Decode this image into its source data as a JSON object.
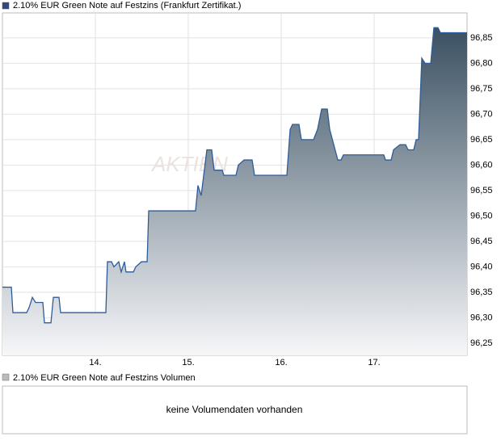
{
  "chart_data": {
    "type": "area",
    "watermark": "AKTIEN",
    "x": [
      13.0,
      13.096,
      13.113,
      13.261,
      13.287,
      13.322,
      13.357,
      13.435,
      13.452,
      13.522,
      13.548,
      13.609,
      13.626,
      14.113,
      14.13,
      14.174,
      14.2,
      14.252,
      14.278,
      14.313,
      14.33,
      14.409,
      14.435,
      14.496,
      14.557,
      14.574,
      15.078,
      15.104,
      15.139,
      15.2,
      15.252,
      15.278,
      15.365,
      15.383,
      15.513,
      15.539,
      15.6,
      15.687,
      15.713,
      16.061,
      16.096,
      16.122,
      16.191,
      16.217,
      16.348,
      16.391,
      16.435,
      16.496,
      16.522,
      16.609,
      16.643,
      16.67,
      17.104,
      17.122,
      17.183,
      17.209,
      17.278,
      17.339,
      17.365,
      17.426,
      17.452,
      17.478,
      17.513,
      17.548,
      17.609,
      17.643,
      17.687,
      17.713,
      18.0
    ],
    "series": [
      {
        "name": "2.10% EUR Green Note auf Festzins (Frankfurt Zertifikat.)",
        "color": "#2e5c99",
        "values": [
          96.36,
          96.36,
          96.31,
          96.31,
          96.32,
          96.34,
          96.33,
          96.33,
          96.29,
          96.29,
          96.34,
          96.34,
          96.31,
          96.31,
          96.41,
          96.41,
          96.4,
          96.41,
          96.39,
          96.41,
          96.39,
          96.39,
          96.4,
          96.41,
          96.41,
          96.51,
          96.51,
          96.56,
          96.54,
          96.63,
          96.63,
          96.59,
          96.59,
          96.58,
          96.58,
          96.6,
          96.61,
          96.61,
          96.58,
          96.58,
          96.67,
          96.68,
          96.68,
          96.65,
          96.65,
          96.67,
          96.71,
          96.71,
          96.67,
          96.61,
          96.61,
          96.62,
          96.62,
          96.61,
          96.61,
          96.63,
          96.64,
          96.64,
          96.63,
          96.63,
          96.65,
          96.65,
          96.81,
          96.8,
          96.8,
          96.87,
          96.87,
          96.86,
          96.86
        ]
      }
    ],
    "xlim": [
      13,
      18
    ],
    "xticks": [
      {
        "value": 14,
        "label": "14."
      },
      {
        "value": 15,
        "label": "15."
      },
      {
        "value": 16,
        "label": "16."
      },
      {
        "value": 17,
        "label": "17."
      }
    ],
    "ylim": [
      96.226,
      96.899
    ],
    "yticks": [
      {
        "value": 96.25,
        "label": "96,25"
      },
      {
        "value": 96.3,
        "label": "96,30"
      },
      {
        "value": 96.35,
        "label": "96,35"
      },
      {
        "value": 96.4,
        "label": "96,40"
      },
      {
        "value": 96.45,
        "label": "96,45"
      },
      {
        "value": 96.5,
        "label": "96,50"
      },
      {
        "value": 96.55,
        "label": "96,55"
      },
      {
        "value": 96.6,
        "label": "96,60"
      },
      {
        "value": 96.65,
        "label": "96,65"
      },
      {
        "value": 96.7,
        "label": "96,70"
      },
      {
        "value": 96.75,
        "label": "96,75"
      },
      {
        "value": 96.8,
        "label": "96,80"
      },
      {
        "value": 96.85,
        "label": "96,85"
      }
    ],
    "grid": true
  },
  "volume": {
    "legend": "2.10% EUR Green Note auf Festzins Volumen",
    "message": "keine Volumendaten vorhanden"
  }
}
